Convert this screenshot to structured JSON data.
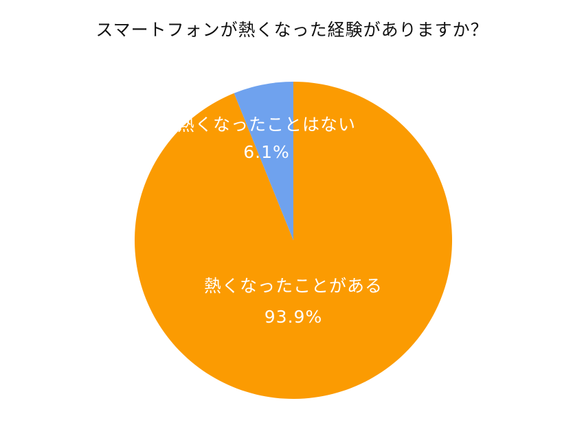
{
  "chart_data": {
    "type": "pie",
    "title": "スマートフォンが熱くなった経験がありますか？",
    "slices": [
      {
        "label": "熱くなったことがある",
        "value": 93.9,
        "display": "93.9%",
        "color": "#FB9B02"
      },
      {
        "label": "熱くなったことはない",
        "value": 6.1,
        "display": "6.1%",
        "color": "#6FA2EE"
      }
    ],
    "start_angle": "12 o'clock",
    "direction": "clockwise",
    "legend": "none"
  }
}
